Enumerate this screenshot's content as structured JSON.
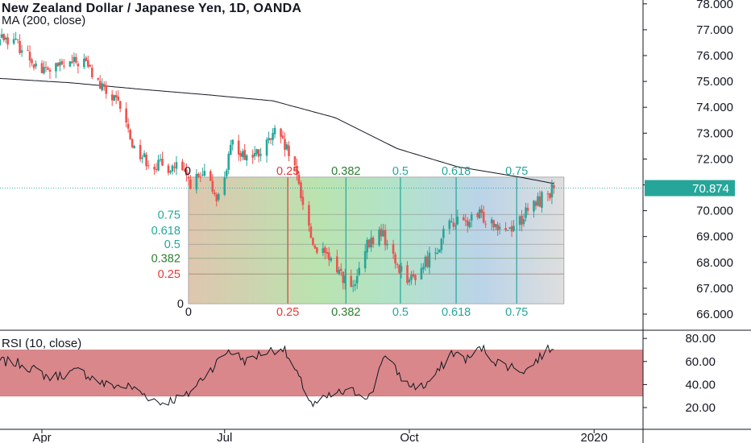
{
  "header": {
    "title": "New Zealand Dollar / Japanese Yen, 1D, OANDA",
    "ma_label": "MA (200, close)",
    "rsi_label": "RSI (10, close)"
  },
  "colors": {
    "up": "#26a69a",
    "down": "#ef5350",
    "ma_line": "#131722",
    "price_badge": "#26a69a",
    "rsi_band": "#d9878a",
    "rsi_line": "#131722",
    "fib_green": "#26a69a",
    "fib_red": "#e53935",
    "fib_dark_green": "#2e7d32"
  },
  "chart_data": [
    {
      "type": "candlestick",
      "title": "New Zealand Dollar / Japanese Yen, 1D, OANDA",
      "x_tick_labels": [
        "Apr",
        "Jul",
        "Oct",
        "2020"
      ],
      "y_tick_labels": [
        "66.000",
        "67.000",
        "68.000",
        "69.000",
        "70.000",
        "71.000",
        "72.000",
        "73.000",
        "74.000",
        "75.000",
        "76.000",
        "77.000",
        "78.000"
      ],
      "ylim": [
        65.2,
        78.2
      ],
      "last_price_label": "70.874",
      "last_price": 70.874,
      "ohlc_path": {
        "description": "daily close anchors, read from the chart (dates approximate)",
        "x": [
          "2019-03-04",
          "2019-03-15",
          "2019-03-22",
          "2019-04-01",
          "2019-04-12",
          "2019-04-22",
          "2019-04-30",
          "2019-05-10",
          "2019-05-17",
          "2019-05-24",
          "2019-05-31",
          "2019-06-07",
          "2019-06-14",
          "2019-06-21",
          "2019-06-28",
          "2019-07-05",
          "2019-07-12",
          "2019-07-19",
          "2019-07-26",
          "2019-08-02",
          "2019-08-07",
          "2019-08-14",
          "2019-08-23",
          "2019-08-26",
          "2019-09-03",
          "2019-09-10",
          "2019-09-17",
          "2019-09-24",
          "2019-10-02",
          "2019-10-08",
          "2019-10-15",
          "2019-10-22",
          "2019-10-29",
          "2019-11-05",
          "2019-11-12",
          "2019-11-19",
          "2019-11-26",
          "2019-12-03",
          "2019-12-12"
        ],
        "y": [
          76.6,
          76.7,
          76.3,
          75.4,
          75.6,
          75.8,
          74.8,
          74.0,
          72.4,
          71.9,
          71.7,
          71.7,
          71.1,
          71.3,
          70.5,
          72.6,
          72.1,
          72.2,
          73.0,
          72.2,
          71.0,
          68.7,
          68.0,
          67.8,
          66.9,
          68.6,
          69.2,
          68.0,
          67.3,
          67.9,
          68.6,
          69.6,
          69.5,
          69.8,
          69.6,
          69.3,
          69.7,
          70.3,
          70.87
        ]
      },
      "ma_200": {
        "name": "MA (200, close)",
        "x": [
          "2019-03-04",
          "2019-04-15",
          "2019-05-20",
          "2019-06-20",
          "2019-07-25",
          "2019-08-25",
          "2019-09-25",
          "2019-10-25",
          "2019-11-25",
          "2019-12-12"
        ],
        "y": [
          75.15,
          74.95,
          74.7,
          74.5,
          74.25,
          73.6,
          72.4,
          71.7,
          71.3,
          71.05
        ]
      }
    },
    {
      "type": "fibonacci_time_price_fan",
      "levels": [
        "0",
        "0.25",
        "0.382",
        "0.5",
        "0.618",
        "0.75"
      ],
      "price_range": [
        66.4,
        71.3
      ],
      "time_range": [
        "2019-06-13",
        "2019-12-17"
      ]
    },
    {
      "type": "line",
      "title": "RSI (10, close)",
      "y_tick_labels": [
        "20.00",
        "40.00",
        "60.00",
        "80.00"
      ],
      "ylim": [
        13,
        83
      ],
      "band": [
        30,
        70
      ],
      "series": [
        {
          "name": "RSI (10, close)",
          "x": [
            "2019-03-04",
            "2019-03-22",
            "2019-04-05",
            "2019-04-20",
            "2019-05-02",
            "2019-05-15",
            "2019-05-30",
            "2019-06-12",
            "2019-06-20",
            "2019-07-03",
            "2019-07-12",
            "2019-07-20",
            "2019-07-30",
            "2019-08-08",
            "2019-08-14",
            "2019-08-25",
            "2019-09-03",
            "2019-09-12",
            "2019-09-18",
            "2019-09-30",
            "2019-10-08",
            "2019-10-15",
            "2019-10-22",
            "2019-10-30",
            "2019-11-06",
            "2019-11-13",
            "2019-11-20",
            "2019-11-28",
            "2019-12-05",
            "2019-12-12"
          ],
          "y": [
            62,
            58,
            46,
            52,
            40,
            38,
            24,
            30,
            46,
            70,
            60,
            68,
            72,
            42,
            22,
            32,
            34,
            30,
            66,
            40,
            38,
            50,
            68,
            62,
            72,
            60,
            56,
            52,
            64,
            74
          ]
        }
      ]
    }
  ]
}
